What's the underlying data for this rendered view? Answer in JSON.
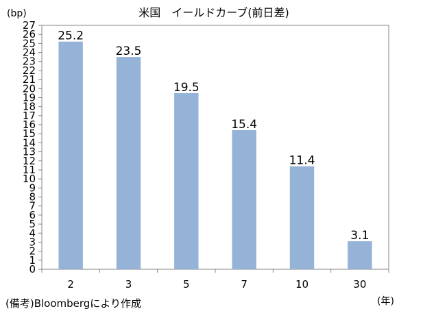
{
  "chart_data": {
    "type": "bar",
    "title": "米国　イールドカーブ(前日差)",
    "y_unit": "(bp)",
    "x_unit": "(年)",
    "categories": [
      "2",
      "3",
      "5",
      "7",
      "10",
      "30"
    ],
    "values": [
      25.2,
      23.5,
      19.5,
      15.4,
      11.4,
      3.1
    ],
    "data_labels": [
      "25.2",
      "23.5",
      "19.5",
      "15.4",
      "11.4",
      "3.1"
    ],
    "ylim": [
      0,
      27
    ],
    "yticks": [
      0,
      1,
      2,
      3,
      4,
      5,
      6,
      7,
      8,
      9,
      10,
      11,
      12,
      13,
      14,
      15,
      16,
      17,
      18,
      19,
      20,
      21,
      22,
      23,
      24,
      25,
      26,
      27
    ],
    "grid": false,
    "legend": "none",
    "bar_color": "#95b3d7",
    "axis_color": "#868686"
  },
  "source_note": "(備考)Bloombergにより作成"
}
